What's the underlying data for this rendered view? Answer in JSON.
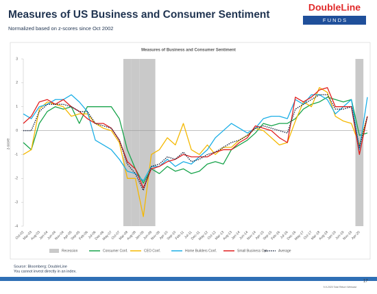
{
  "slide": {
    "title": "Measures of US Business and Consumer Sentiment",
    "subtitle": "Normalized  based on z-scores since Oct 2002",
    "logo": "DoubleLine",
    "logo_sub": "F U N D S",
    "source": "Source: Bloomberg; DoubleLine",
    "disclaimer": "You cannot invest directly in an index.",
    "page_number": 17,
    "footer_note": "9-9-2020 Total Return Webcast"
  },
  "chart_data": {
    "type": "line",
    "title": "Measures of Business and Consumer Sentiment",
    "y_label": "z-score",
    "categories": [
      "Oct-02",
      "Mar-03",
      "Aug-03",
      "Jan-04",
      "Jun-04",
      "Nov-04",
      "Apr-05",
      "Sep-05",
      "Feb-06",
      "Jul-06",
      "Dec-06",
      "May-07",
      "Oct-07",
      "Mar-08",
      "Aug-08",
      "Jan-09",
      "Jun-09",
      "Nov-09",
      "Apr-10",
      "Sep-10",
      "Feb-11",
      "Jul-11",
      "Dec-11",
      "May-12",
      "Oct-12",
      "Mar-13",
      "Aug-13",
      "Jan-14",
      "Jun-14",
      "Nov-14",
      "Apr-15",
      "Sep-15",
      "Feb-16",
      "Jul-16",
      "Dec-16",
      "May-17",
      "Oct-17",
      "Mar-18",
      "Aug-18",
      "Jan-19",
      "Jun-19",
      "Nov-19",
      "Apr-20",
      null
    ],
    "ylim": [
      -4,
      3
    ],
    "yticks": [
      -4,
      -3,
      -2,
      -1,
      0,
      1,
      2,
      3
    ],
    "recession": {
      "name": "Recession",
      "color": "#c9c9c9",
      "values": [
        0,
        0,
        0,
        0,
        0,
        0,
        0,
        0,
        0,
        0,
        0,
        0,
        0,
        1,
        1,
        1,
        1,
        0,
        0,
        0,
        0,
        0,
        0,
        0,
        0,
        0,
        0,
        0,
        0,
        0,
        0,
        0,
        0,
        0,
        0,
        0,
        0,
        0,
        0,
        0,
        0,
        0,
        1,
        0
      ]
    },
    "series": [
      {
        "name": "Consumer Conf.",
        "color": "#16a34a",
        "values": [
          -0.5,
          -0.8,
          0.3,
          0.8,
          1.0,
          0.9,
          1.0,
          0.3,
          1.0,
          1.0,
          1.0,
          1.0,
          0.5,
          -0.8,
          -1.6,
          -2.2,
          -1.6,
          -1.8,
          -1.5,
          -1.7,
          -1.6,
          -1.8,
          -1.7,
          -1.4,
          -1.3,
          -1.4,
          -0.8,
          -0.6,
          -0.4,
          -0.1,
          0.3,
          0.2,
          0.3,
          0.3,
          0.5,
          0.9,
          1.1,
          1.2,
          1.4,
          1.3,
          1.2,
          1.3,
          -0.2,
          -0.1
        ]
      },
      {
        "name": "CEO Conf.",
        "color": "#f5b800",
        "values": [
          -1.0,
          -0.8,
          0.9,
          1.2,
          1.1,
          1.0,
          0.6,
          0.7,
          0.7,
          0.3,
          0.1,
          0.0,
          -0.5,
          -2.0,
          -2.0,
          -3.6,
          -1.0,
          -0.8,
          -0.3,
          -0.6,
          0.3,
          -0.8,
          -1.0,
          -0.6,
          -1.0,
          -0.7,
          -0.7,
          -0.4,
          -0.2,
          0.1,
          0.0,
          -0.3,
          -0.6,
          -0.5,
          0.4,
          1.2,
          1.0,
          1.8,
          1.6,
          0.6,
          0.4,
          0.3,
          -0.6,
          0.6
        ]
      },
      {
        "name": "Home Builders Conf.",
        "color": "#1aaee6",
        "values": [
          0.7,
          0.5,
          1.0,
          1.1,
          1.3,
          1.3,
          1.5,
          1.2,
          0.8,
          -0.4,
          -0.6,
          -0.8,
          -1.2,
          -1.7,
          -1.8,
          -2.1,
          -1.5,
          -1.5,
          -1.2,
          -1.5,
          -1.3,
          -1.4,
          -1.1,
          -0.8,
          -0.3,
          0.0,
          0.3,
          0.1,
          -0.1,
          0.1,
          0.5,
          0.6,
          0.6,
          0.5,
          1.3,
          1.1,
          1.5,
          1.5,
          1.3,
          0.7,
          1.0,
          1.3,
          -0.8,
          1.4
        ]
      },
      {
        "name": "Small Business Opt.",
        "color": "#e11d1d",
        "values": [
          0.3,
          0.6,
          1.2,
          1.3,
          1.1,
          1.3,
          1.0,
          0.8,
          0.5,
          0.3,
          0.3,
          0.1,
          -0.4,
          -1.3,
          -1.6,
          -2.4,
          -1.6,
          -1.5,
          -1.3,
          -1.2,
          -1.0,
          -1.1,
          -1.1,
          -1.1,
          -0.9,
          -0.8,
          -0.8,
          -0.5,
          -0.3,
          0.2,
          0.1,
          0.0,
          -0.3,
          -0.5,
          1.4,
          1.2,
          1.4,
          1.7,
          1.8,
          1.0,
          1.0,
          1.0,
          -1.0,
          0.6
        ]
      },
      {
        "name": "Average",
        "color": "#1f2a44",
        "dashed": true,
        "values": [
          0.0,
          0.0,
          0.8,
          1.1,
          1.1,
          1.1,
          1.0,
          0.8,
          0.8,
          0.3,
          0.2,
          0.1,
          -0.4,
          -1.4,
          -1.8,
          -2.5,
          -1.5,
          -1.4,
          -1.1,
          -1.2,
          -0.9,
          -1.3,
          -1.2,
          -1.0,
          -0.9,
          -0.7,
          -0.5,
          -0.4,
          -0.2,
          0.1,
          0.2,
          0.1,
          0.0,
          -0.1,
          0.9,
          1.1,
          1.3,
          1.5,
          1.5,
          0.9,
          0.9,
          1.0,
          -0.7,
          0.6
        ]
      }
    ]
  }
}
